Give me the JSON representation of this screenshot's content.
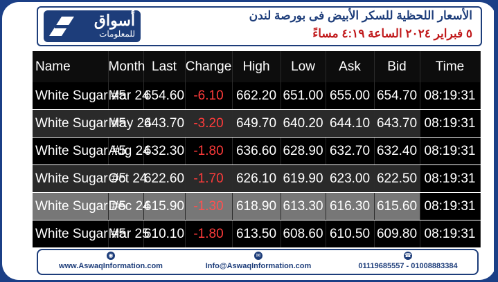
{
  "logo": {
    "ar": "أسواق",
    "sub": "للمعلومات"
  },
  "header": {
    "line1": "الأسعار اللحظية للسكر الأبيض فى بورصة لندن",
    "line2": "٥ فبراير ٢٠٢٤ الساعة ٤:١٩ مساءً"
  },
  "table": {
    "headers": [
      "Name",
      "Month",
      "Last",
      "Change",
      "High",
      "Low",
      "Ask",
      "Bid",
      "Time"
    ],
    "rows": [
      [
        "White Sugar #5",
        "Mar 24",
        "654.60",
        "-6.10",
        "662.20",
        "651.00",
        "655.00",
        "654.70",
        "08:19:31"
      ],
      [
        "White Sugar #5",
        "May 24",
        "643.70",
        "-3.20",
        "649.70",
        "640.20",
        "644.10",
        "643.70",
        "08:19:31"
      ],
      [
        "White Sugar #5",
        "Aug 24",
        "632.30",
        "-1.80",
        "636.60",
        "628.90",
        "632.70",
        "632.40",
        "08:19:31"
      ],
      [
        "White Sugar #5",
        "Oct 24",
        "622.60",
        "-1.70",
        "626.10",
        "619.90",
        "623.00",
        "622.50",
        "08:19:31"
      ],
      [
        "White Sugar #5",
        "Dec 24",
        "615.90",
        "-1.30",
        "618.90",
        "613.30",
        "616.30",
        "615.60",
        "08:19:31"
      ],
      [
        "White Sugar #5",
        "Mar 25",
        "610.10",
        "-1.80",
        "613.50",
        "608.60",
        "610.50",
        "609.80",
        "08:19:31"
      ]
    ]
  },
  "footer": {
    "website": "www.AswaqInformation.com",
    "email": "Info@AswaqInformation.com",
    "phones": "01119685557 - 01008883384",
    "icons": [
      "globe-icon",
      "email-icon",
      "phone-icon"
    ]
  },
  "colors": {
    "brand": "#1d3d7a",
    "negative": "#ff3b3b",
    "date": "#c0181a"
  }
}
